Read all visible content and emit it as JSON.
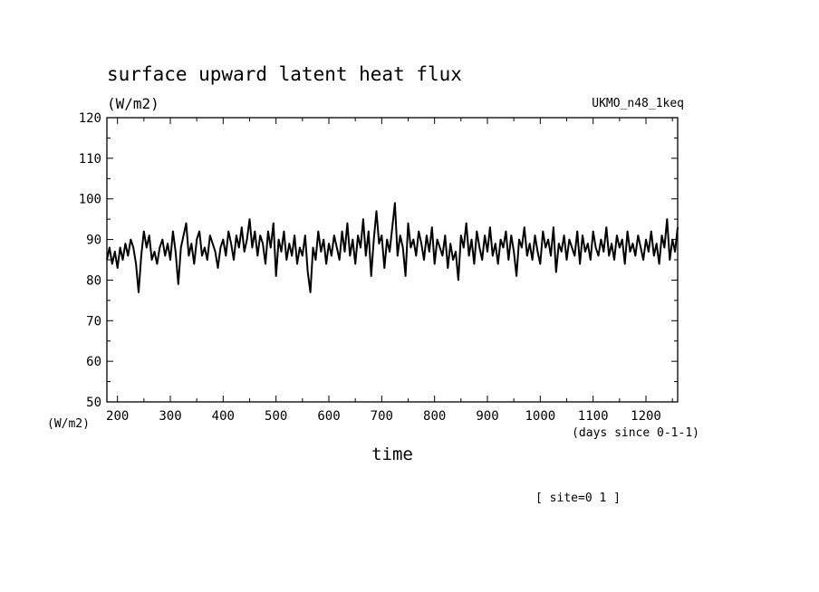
{
  "chart_data": {
    "type": "line",
    "title": "surface upward latent heat flux",
    "units_label": "(W/m2)",
    "model_label": "UKMO_n48_1keq",
    "ylabel_bottom": "(W/m2)",
    "xlabel": "time",
    "xunits_label": "(days since 0-1-1)",
    "footnote": "[ site=0 1 ]",
    "xlim": [
      180,
      1260
    ],
    "ylim": [
      50,
      120
    ],
    "x_ticks": [
      "200",
      "300",
      "400",
      "500",
      "600",
      "700",
      "800",
      "900",
      "1000",
      "1100",
      "1200"
    ],
    "y_ticks": [
      "50",
      "60",
      "70",
      "80",
      "90",
      "100",
      "110",
      "120"
    ],
    "grid": false,
    "series": [
      {
        "color": "#000000",
        "x": [
          180,
          185,
          190,
          195,
          200,
          205,
          210,
          215,
          220,
          225,
          230,
          235,
          240,
          245,
          250,
          255,
          260,
          265,
          270,
          275,
          280,
          285,
          290,
          295,
          300,
          305,
          310,
          315,
          320,
          325,
          330,
          335,
          340,
          345,
          350,
          355,
          360,
          365,
          370,
          375,
          380,
          385,
          390,
          395,
          400,
          405,
          410,
          415,
          420,
          425,
          430,
          435,
          440,
          445,
          450,
          455,
          460,
          465,
          470,
          475,
          480,
          485,
          490,
          495,
          500,
          505,
          510,
          515,
          520,
          525,
          530,
          535,
          540,
          545,
          550,
          555,
          560,
          565,
          570,
          575,
          580,
          585,
          590,
          595,
          600,
          605,
          610,
          615,
          620,
          625,
          630,
          635,
          640,
          645,
          650,
          655,
          660,
          665,
          670,
          675,
          680,
          685,
          690,
          695,
          700,
          705,
          710,
          715,
          720,
          725,
          730,
          735,
          740,
          745,
          750,
          755,
          760,
          765,
          770,
          775,
          780,
          785,
          790,
          795,
          800,
          805,
          810,
          815,
          820,
          825,
          830,
          835,
          840,
          845,
          850,
          855,
          860,
          865,
          870,
          875,
          880,
          885,
          890,
          895,
          900,
          905,
          910,
          915,
          920,
          925,
          930,
          935,
          940,
          945,
          950,
          955,
          960,
          965,
          970,
          975,
          980,
          985,
          990,
          995,
          1000,
          1005,
          1010,
          1015,
          1020,
          1025,
          1030,
          1035,
          1040,
          1045,
          1050,
          1055,
          1060,
          1065,
          1070,
          1075,
          1080,
          1085,
          1090,
          1095,
          1100,
          1105,
          1110,
          1115,
          1120,
          1125,
          1130,
          1135,
          1140,
          1145,
          1150,
          1155,
          1160,
          1165,
          1170,
          1175,
          1180,
          1185,
          1190,
          1195,
          1200,
          1205,
          1210,
          1215,
          1220,
          1225,
          1230,
          1235,
          1240,
          1245,
          1250,
          1255,
          1260
        ],
        "y": [
          85,
          88,
          84,
          87,
          83,
          88,
          85,
          89,
          86,
          90,
          88,
          84,
          77,
          86,
          92,
          88,
          91,
          85,
          87,
          84,
          88,
          90,
          86,
          89,
          85,
          92,
          87,
          79,
          88,
          91,
          94,
          86,
          89,
          84,
          90,
          92,
          86,
          88,
          85,
          91,
          89,
          87,
          83,
          88,
          90,
          86,
          92,
          89,
          85,
          91,
          88,
          93,
          87,
          90,
          95,
          88,
          92,
          86,
          91,
          89,
          84,
          92,
          88,
          94,
          81,
          90,
          87,
          92,
          85,
          89,
          86,
          91,
          84,
          88,
          86,
          91,
          82,
          77,
          88,
          85,
          92,
          87,
          90,
          84,
          89,
          86,
          91,
          88,
          85,
          92,
          87,
          94,
          86,
          90,
          84,
          91,
          88,
          95,
          86,
          92,
          81,
          90,
          97,
          89,
          91,
          83,
          90,
          87,
          93,
          99,
          86,
          91,
          88,
          81,
          94,
          88,
          90,
          86,
          92,
          89,
          85,
          91,
          87,
          93,
          84,
          90,
          88,
          86,
          91,
          83,
          89,
          85,
          87,
          80,
          91,
          88,
          94,
          86,
          90,
          84,
          92,
          88,
          85,
          91,
          87,
          93,
          86,
          89,
          84,
          90,
          88,
          92,
          85,
          91,
          87,
          81,
          90,
          88,
          93,
          86,
          89,
          85,
          91,
          87,
          84,
          92,
          88,
          90,
          86,
          93,
          82,
          89,
          87,
          91,
          85,
          90,
          88,
          86,
          92,
          84,
          91,
          87,
          89,
          85,
          92,
          88,
          86,
          90,
          87,
          93,
          86,
          89,
          85,
          91,
          88,
          90,
          84,
          92,
          87,
          89,
          86,
          91,
          88,
          85,
          90,
          87,
          92,
          86,
          89,
          84,
          91,
          88,
          95,
          85,
          90,
          87,
          93
        ]
      }
    ]
  }
}
